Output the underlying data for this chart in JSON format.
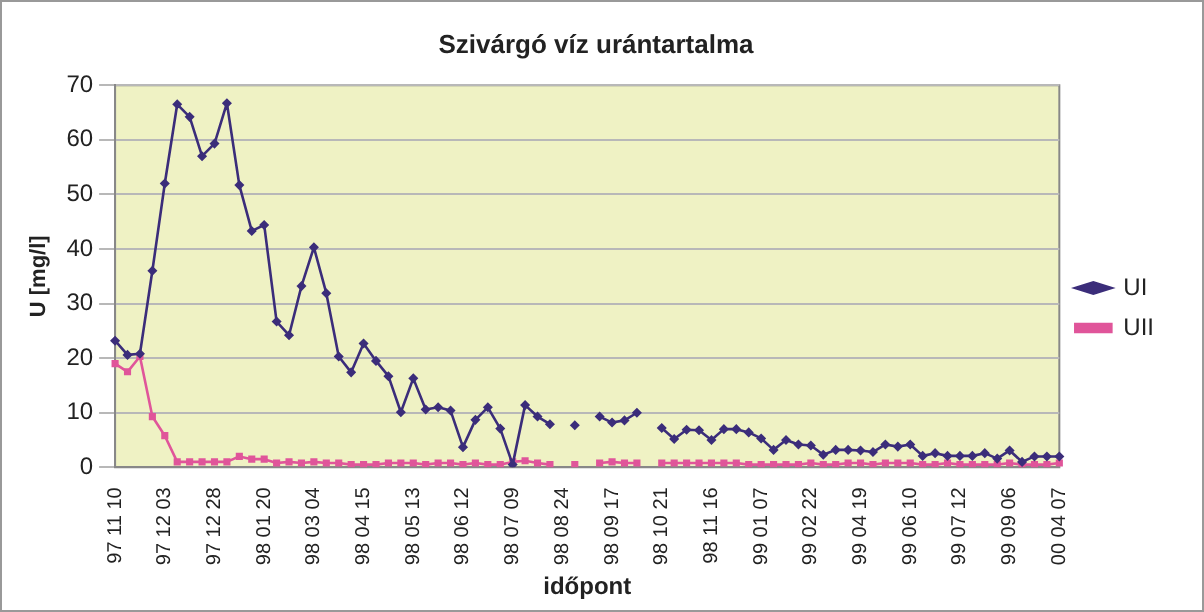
{
  "chart_data": {
    "type": "line",
    "title": "Szivárgó víz urántartalma",
    "xlabel": "időpont",
    "ylabel": "U [mg/l]",
    "categories": [
      "97 11 10",
      null,
      null,
      null,
      "97 12 03",
      null,
      null,
      null,
      "97 12 28",
      null,
      null,
      null,
      "98 01 20",
      null,
      null,
      null,
      "98 03 04",
      null,
      null,
      null,
      "98 04 15",
      null,
      null,
      null,
      "98 05 13",
      null,
      null,
      null,
      "98 06 12",
      null,
      null,
      null,
      "98 07 09",
      null,
      null,
      null,
      "98 08 24",
      null,
      null,
      null,
      "98 09 17",
      null,
      null,
      null,
      "98 10 21",
      null,
      null,
      null,
      "98 11 16",
      null,
      null,
      null,
      "99 01 07",
      null,
      null,
      null,
      "99 02 22",
      null,
      null,
      null,
      "99 04 19",
      null,
      null,
      null,
      "99 06 10",
      null,
      null,
      null,
      "99 07 12",
      null,
      null,
      null,
      "99 09 06",
      null,
      null,
      null,
      "00 04 07"
    ],
    "series": [
      {
        "name": "UI",
        "color": "#3b2d7a",
        "marker": "diamond",
        "values": [
          23.2,
          20.6,
          20.8,
          36,
          52,
          66.5,
          64.2,
          57,
          59.3,
          66.7,
          51.7,
          43.3,
          44.4,
          26.7,
          24.2,
          33.2,
          40.3,
          31.9,
          20.3,
          17.4,
          22.7,
          19.5,
          16.7,
          10.1,
          16.3,
          10.6,
          11,
          10.4,
          3.7,
          8.7,
          11,
          7.1,
          0.5,
          11.4,
          9.3,
          7.9,
          null,
          7.7,
          null,
          9.3,
          8.2,
          8.6,
          10,
          null,
          7.2,
          5.2,
          6.9,
          6.8,
          5,
          7,
          7,
          6.4,
          5.3,
          3.2,
          5,
          4.2,
          4,
          2.3,
          3.2,
          3.2,
          3.1,
          2.8,
          4.2,
          3.8,
          4.2,
          2.1,
          2.6,
          2.1,
          2.1,
          2.1,
          2.6,
          1.6,
          3.1,
          1,
          2,
          2,
          2
        ]
      },
      {
        "name": "UII",
        "color": "#e0559a",
        "marker": "square",
        "values": [
          19,
          17.5,
          20.3,
          9.3,
          5.8,
          1,
          1,
          1,
          1,
          1,
          2,
          1.5,
          1.5,
          0.8,
          1,
          0.8,
          1,
          0.8,
          0.8,
          0.5,
          0.5,
          0.5,
          0.8,
          0.8,
          0.8,
          0.5,
          0.8,
          0.8,
          0.5,
          0.8,
          0.5,
          0.5,
          1,
          1.2,
          0.8,
          0.5,
          null,
          0.5,
          null,
          0.8,
          1,
          0.8,
          0.8,
          null,
          0.8,
          0.8,
          0.8,
          0.8,
          0.8,
          0.8,
          0.8,
          0.5,
          0.5,
          0.5,
          0.5,
          0.5,
          0.8,
          0.5,
          0.5,
          0.8,
          0.8,
          0.5,
          0.8,
          0.8,
          0.8,
          0.5,
          0.5,
          0.8,
          0.5,
          0.5,
          0.5,
          0.5,
          0.8,
          0.5,
          0.5,
          0.5,
          0.8
        ]
      }
    ],
    "ylim": [
      0,
      70
    ],
    "yticks": [
      0,
      10,
      20,
      30,
      40,
      50,
      60,
      70
    ],
    "grid": "y",
    "legend": "right",
    "line_style": "solid"
  }
}
